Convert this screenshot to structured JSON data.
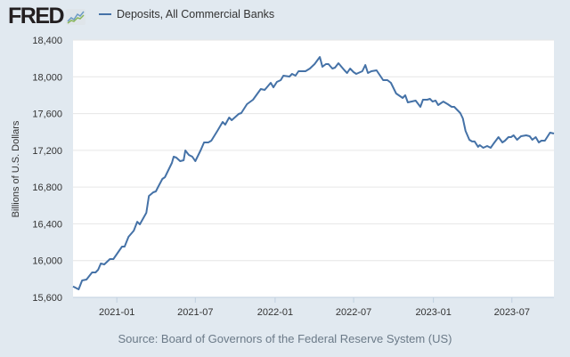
{
  "header": {
    "logo_text": "FRED",
    "legend_label": "Deposits, All Commercial Banks"
  },
  "source": "Source: Board of Governors of the Federal Reserve System (US)",
  "colors": {
    "series": "#4572a7",
    "background": "#e1e9f0",
    "plot": "#ffffff",
    "grid": "#e6e6e6"
  },
  "chart_data": {
    "type": "line",
    "title": "",
    "xlabel": "",
    "ylabel": "Billions of U.S. Dollars",
    "ylim": [
      15600,
      18400
    ],
    "xlim": [
      "2020-09-22",
      "2023-10-06"
    ],
    "grid": true,
    "legend": "top-left",
    "yticks": [
      "15,600",
      "16,000",
      "16,400",
      "16,800",
      "17,200",
      "17,600",
      "18,000",
      "18,400"
    ],
    "ytick_values": [
      15600,
      16000,
      16400,
      16800,
      17200,
      17600,
      18000,
      18400
    ],
    "xticks": [
      "2021-01",
      "2021-07",
      "2022-01",
      "2022-07",
      "2023-01",
      "2023-07"
    ],
    "series": [
      {
        "name": "Deposits, All Commercial Banks",
        "x": [
          "2020-09-22",
          "2020-10-05",
          "2020-10-13",
          "2020-10-23",
          "2020-11-05",
          "2020-11-13",
          "2020-11-19",
          "2020-11-25",
          "2020-12-03",
          "2020-12-16",
          "2020-12-24",
          "2021-01-13",
          "2021-01-19",
          "2021-01-28",
          "2021-02-09",
          "2021-02-17",
          "2021-02-23",
          "2021-03-10",
          "2021-03-16",
          "2021-03-26",
          "2021-04-01",
          "2021-04-05",
          "2021-04-16",
          "2021-04-22",
          "2021-05-08",
          "2021-05-12",
          "2021-05-18",
          "2021-05-27",
          "2021-06-04",
          "2021-06-08",
          "2021-06-16",
          "2021-06-24",
          "2021-07-01",
          "2021-07-13",
          "2021-07-21",
          "2021-07-31",
          "2021-08-07",
          "2021-08-21",
          "2021-09-02",
          "2021-09-08",
          "2021-09-17",
          "2021-09-23",
          "2021-10-09",
          "2021-10-15",
          "2021-10-28",
          "2021-11-11",
          "2021-11-29",
          "2021-12-08",
          "2021-12-22",
          "2021-12-28",
          "2022-01-05",
          "2022-01-14",
          "2022-01-20",
          "2022-02-03",
          "2022-02-09",
          "2022-02-17",
          "2022-02-24",
          "2022-03-12",
          "2022-03-22",
          "2022-04-02",
          "2022-04-14",
          "2022-04-20",
          "2022-04-28",
          "2022-05-04",
          "2022-05-13",
          "2022-05-19",
          "2022-05-27",
          "2022-06-10",
          "2022-06-16",
          "2022-06-23",
          "2022-07-01",
          "2022-07-07",
          "2022-07-21",
          "2022-07-28",
          "2022-08-03",
          "2022-08-11",
          "2022-08-23",
          "2022-09-07",
          "2022-09-17",
          "2022-09-25",
          "2022-10-07",
          "2022-10-22",
          "2022-10-28",
          "2022-11-03",
          "2022-11-21",
          "2022-12-02",
          "2022-12-08",
          "2022-12-18",
          "2022-12-24",
          "2022-12-30",
          "2023-01-06",
          "2023-01-12",
          "2023-01-24",
          "2023-02-03",
          "2023-02-12",
          "2023-02-18",
          "2023-03-04",
          "2023-03-10",
          "2023-03-16",
          "2023-03-25",
          "2023-03-31",
          "2023-04-06",
          "2023-04-14",
          "2023-04-18",
          "2023-04-26",
          "2023-05-05",
          "2023-05-13",
          "2023-05-19",
          "2023-05-31",
          "2023-06-09",
          "2023-06-15",
          "2023-06-23",
          "2023-06-29",
          "2023-07-05",
          "2023-07-13",
          "2023-07-22",
          "2023-08-03",
          "2023-08-11",
          "2023-08-17",
          "2023-08-25",
          "2023-09-01",
          "2023-09-07",
          "2023-09-15",
          "2023-09-27",
          "2023-10-06"
        ],
        "values": [
          15719,
          15687,
          15784,
          15794,
          15871,
          15871,
          15900,
          15968,
          15958,
          16017,
          16017,
          16152,
          16152,
          16259,
          16326,
          16423,
          16394,
          16520,
          16704,
          16743,
          16753,
          16792,
          16889,
          16908,
          17063,
          17131,
          17121,
          17082,
          17092,
          17199,
          17150,
          17131,
          17082,
          17199,
          17286,
          17286,
          17305,
          17412,
          17509,
          17480,
          17557,
          17528,
          17596,
          17606,
          17702,
          17751,
          17867,
          17857,
          17935,
          17886,
          17945,
          17964,
          18012,
          18003,
          18032,
          18012,
          18061,
          18061,
          18090,
          18138,
          18216,
          18109,
          18138,
          18138,
          18090,
          18100,
          18148,
          18071,
          18042,
          18090,
          18051,
          18032,
          18061,
          18129,
          18042,
          18061,
          18071,
          17964,
          17964,
          17935,
          17819,
          17770,
          17799,
          17722,
          17741,
          17673,
          17751,
          17751,
          17761,
          17731,
          17741,
          17693,
          17731,
          17702,
          17673,
          17673,
          17606,
          17547,
          17412,
          17315,
          17296,
          17296,
          17238,
          17257,
          17228,
          17247,
          17228,
          17267,
          17344,
          17286,
          17305,
          17344,
          17344,
          17363,
          17315,
          17354,
          17363,
          17354,
          17315,
          17344,
          17286,
          17305,
          17305,
          17392,
          17383
        ]
      }
    ]
  }
}
